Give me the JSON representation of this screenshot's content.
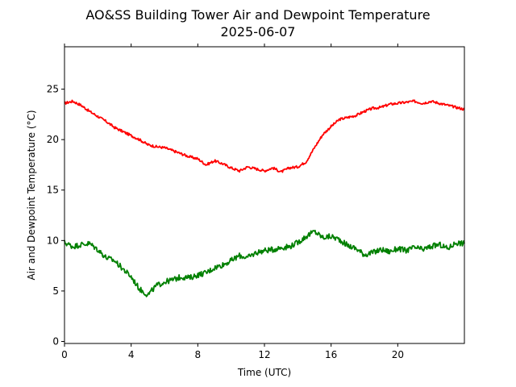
{
  "chart_data": {
    "type": "line",
    "title": "AO&SS Building Tower Air and Dewpoint Temperature",
    "subtitle": "2025-06-07",
    "xlabel": "Time (UTC)",
    "ylabel": "Air and Dewpoint Temperature (°C)",
    "xlim": [
      0,
      24
    ],
    "ylim": [
      -0.2,
      29.2
    ],
    "xticks": [
      0,
      4,
      8,
      12,
      16,
      20
    ],
    "yticks": [
      0,
      5,
      10,
      15,
      20,
      25
    ],
    "grid": false,
    "legend": "none",
    "series": [
      {
        "color": "#ff0000",
        "x": [
          0,
          0.5,
          1,
          1.5,
          2,
          2.5,
          3,
          3.5,
          4,
          4.5,
          5,
          5.5,
          6,
          6.5,
          7,
          7.5,
          8,
          8.5,
          9,
          9.5,
          10,
          10.5,
          11,
          11.5,
          12,
          12.5,
          13,
          13.5,
          14,
          14.5,
          15,
          15.5,
          16,
          16.5,
          17,
          17.5,
          18,
          18.5,
          19,
          19.5,
          20,
          20.5,
          21,
          21.5,
          22,
          22.5,
          23,
          23.5,
          24
        ],
        "y": [
          23.6,
          23.8,
          23.4,
          22.8,
          22.3,
          21.8,
          21.2,
          20.8,
          20.4,
          20.0,
          19.5,
          19.3,
          19.2,
          18.9,
          18.6,
          18.3,
          18.1,
          17.5,
          17.9,
          17.6,
          17.2,
          16.9,
          17.3,
          17.1,
          16.9,
          17.2,
          16.8,
          17.2,
          17.3,
          17.8,
          19.2,
          20.5,
          21.3,
          22.0,
          22.2,
          22.4,
          22.8,
          23.1,
          23.2,
          23.5,
          23.6,
          23.7,
          23.8,
          23.6,
          23.8,
          23.6,
          23.4,
          23.2,
          23.0
        ]
      },
      {
        "color": "#008000",
        "x": [
          0,
          0.5,
          1,
          1.5,
          2,
          2.5,
          3,
          3.5,
          4,
          4.5,
          5,
          5.5,
          6,
          6.5,
          7,
          7.5,
          8,
          8.5,
          9,
          9.5,
          10,
          10.5,
          11,
          11.5,
          12,
          12.5,
          13,
          13.5,
          14,
          14.5,
          15,
          15.5,
          16,
          16.5,
          17,
          17.5,
          18,
          18.5,
          19,
          19.5,
          20,
          20.5,
          21,
          21.5,
          22,
          22.5,
          23,
          23.5,
          24
        ],
        "y": [
          9.8,
          9.4,
          9.6,
          9.7,
          9.1,
          8.3,
          8.0,
          7.2,
          6.4,
          5.2,
          4.6,
          5.5,
          5.9,
          6.1,
          6.4,
          6.3,
          6.6,
          6.8,
          7.3,
          7.6,
          8.0,
          8.5,
          8.3,
          8.8,
          9.0,
          9.1,
          9.3,
          9.4,
          9.8,
          10.4,
          10.9,
          10.3,
          10.4,
          10.1,
          9.5,
          9.2,
          8.6,
          8.8,
          9.1,
          8.9,
          9.2,
          9.0,
          9.3,
          9.1,
          9.4,
          9.6,
          9.2,
          9.8,
          9.7
        ]
      }
    ]
  }
}
